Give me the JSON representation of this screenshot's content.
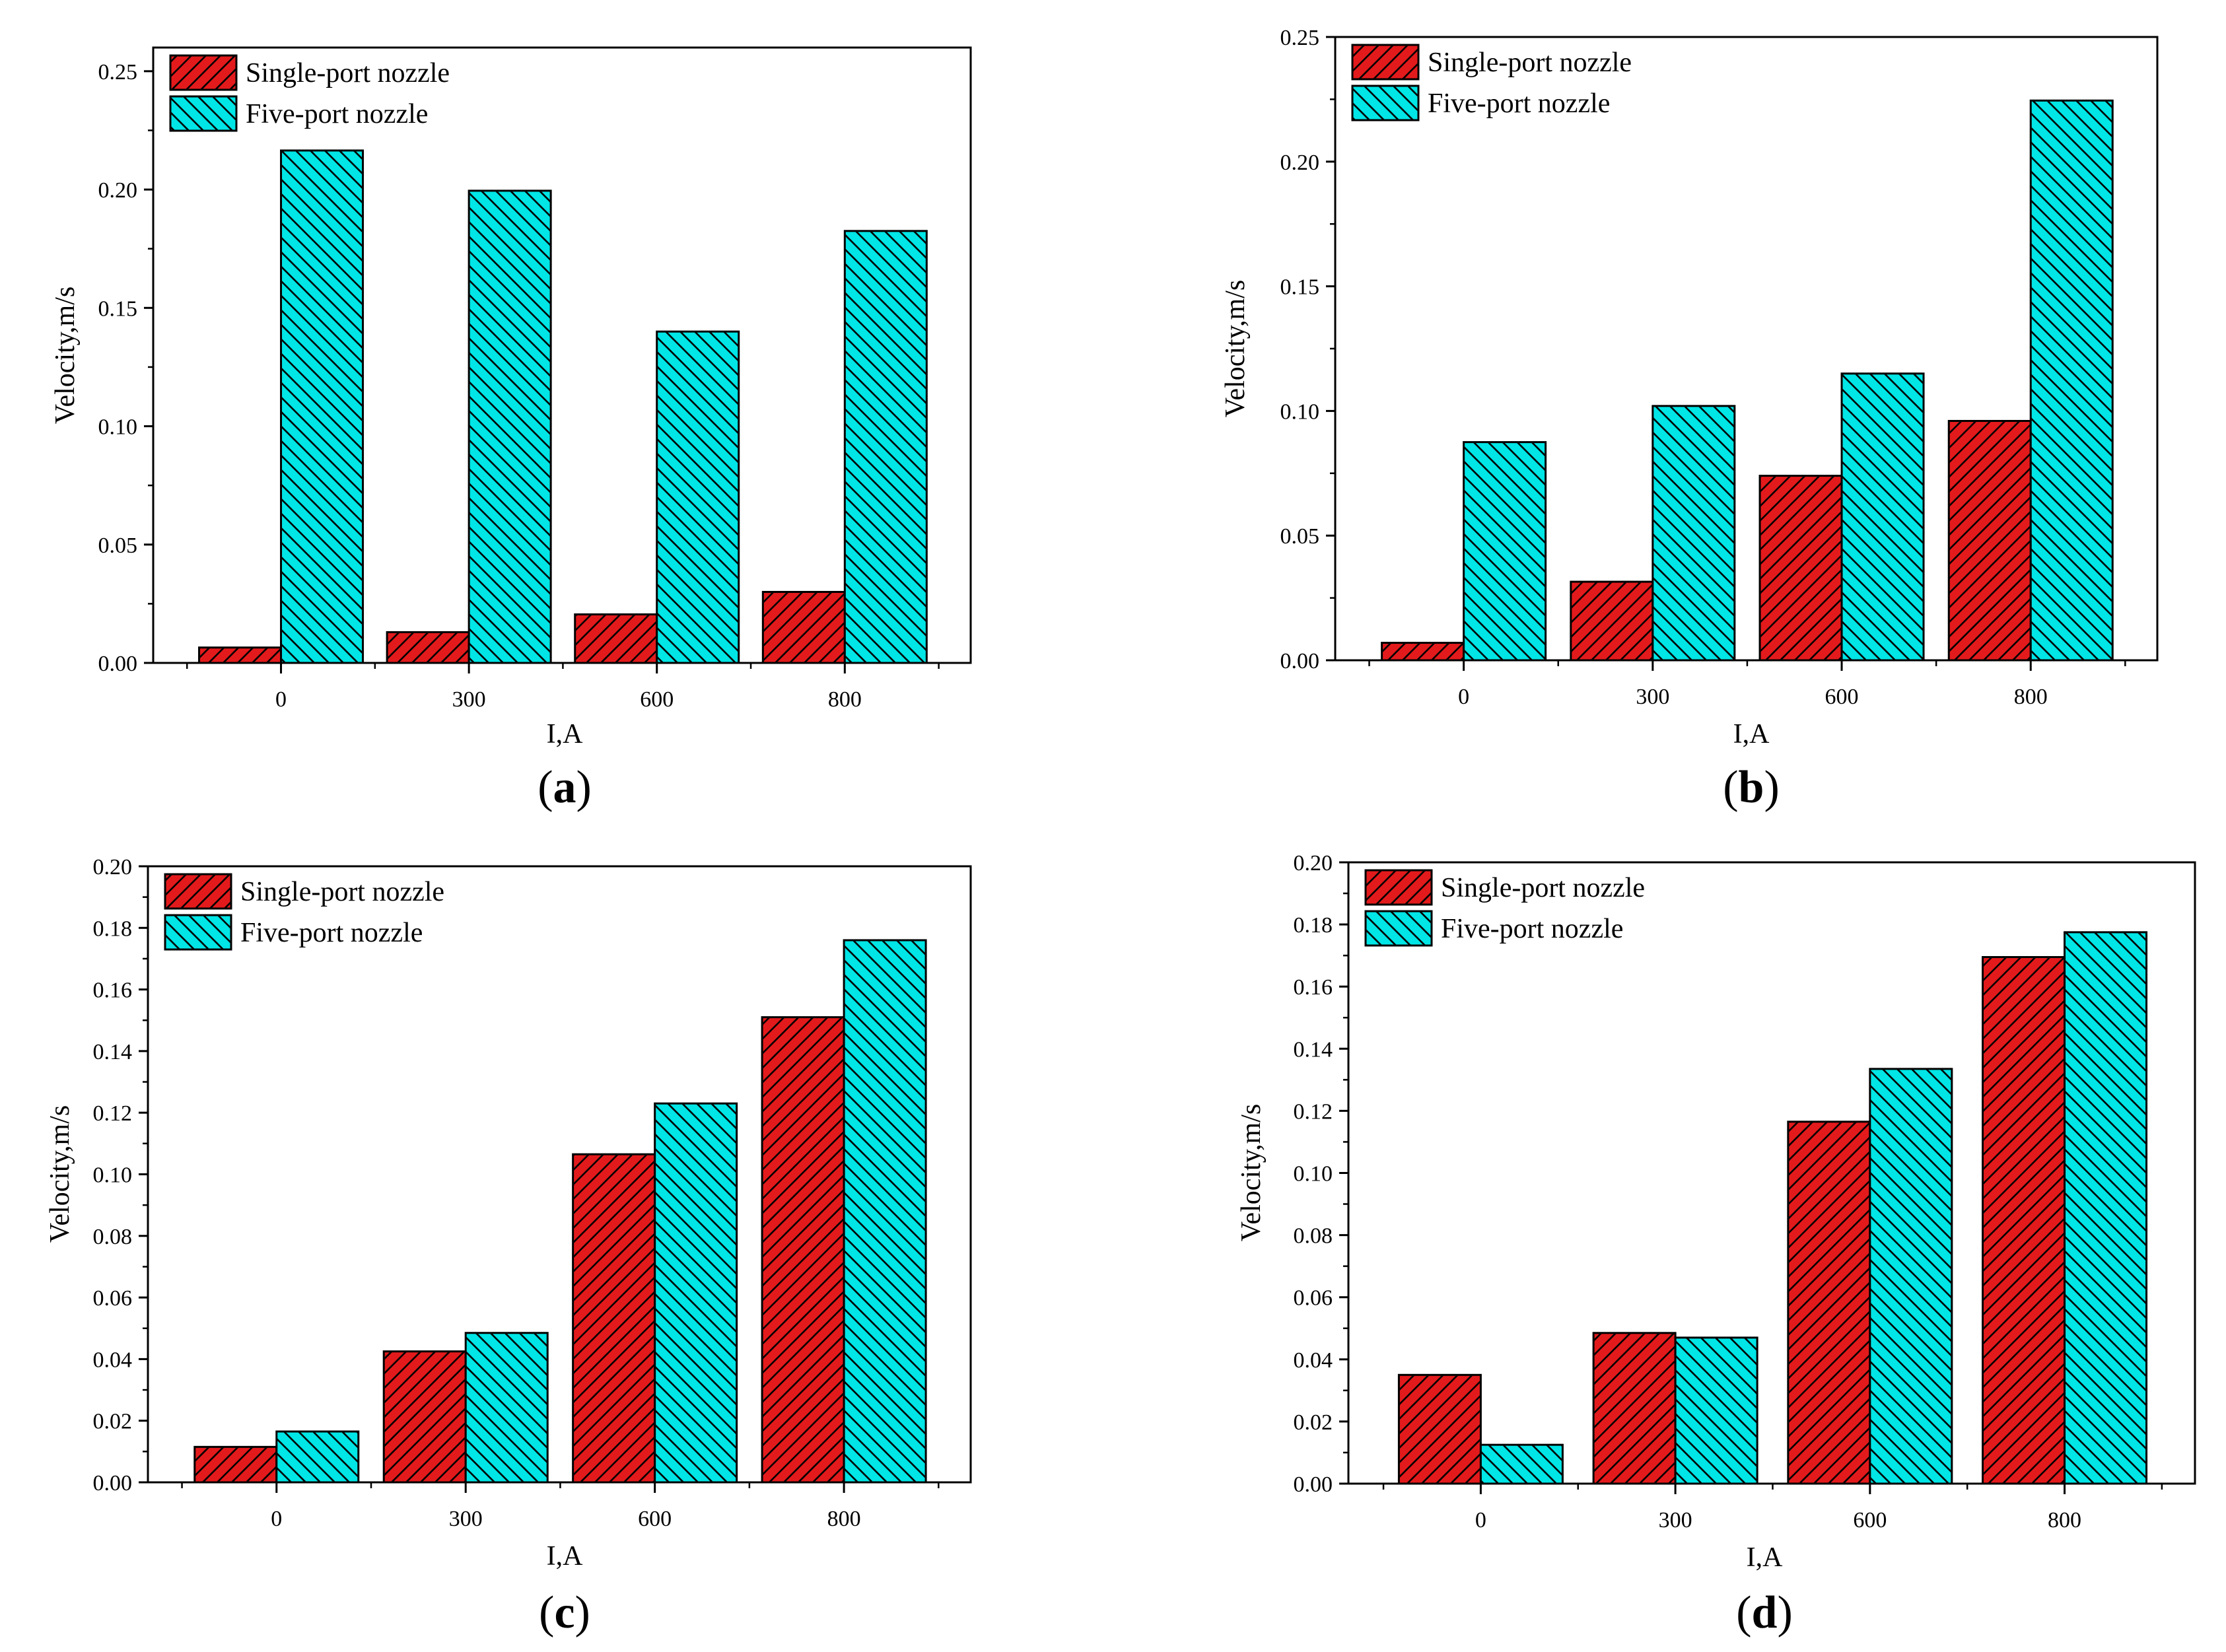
{
  "colors": {
    "single": "#e31a1c",
    "five": "#00e5e5",
    "hatch": "#000000",
    "axis": "#000000"
  },
  "chart_data": [
    {
      "type": "bar",
      "panel_label": "a",
      "title": "",
      "categories": [
        "0",
        "300",
        "600",
        "800"
      ],
      "xlabel": "I,A",
      "ylabel": "Velocity,m/s",
      "ylim": [
        0,
        0.26
      ],
      "yticks": [
        "0.00",
        "0.05",
        "0.10",
        "0.15",
        "0.20",
        "0.25"
      ],
      "legend_position": "top-left",
      "series": [
        {
          "name": "Single-port nozzle",
          "values": [
            0.0065,
            0.013,
            0.0205,
            0.03
          ]
        },
        {
          "name": "Five-port nozzle",
          "values": [
            0.2165,
            0.1995,
            0.14,
            0.1825
          ]
        }
      ]
    },
    {
      "type": "bar",
      "panel_label": "b",
      "title": "",
      "categories": [
        "0",
        "300",
        "600",
        "800"
      ],
      "xlabel": "I,A",
      "ylabel": "Velocity,m/s",
      "ylim": [
        0,
        0.25
      ],
      "yticks": [
        "0.00",
        "0.05",
        "0.10",
        "0.15",
        "0.20",
        "0.25"
      ],
      "legend_position": "top-left",
      "series": [
        {
          "name": "Single-port nozzle",
          "values": [
            0.007,
            0.0315,
            0.074,
            0.096
          ]
        },
        {
          "name": "Five-port nozzle",
          "values": [
            0.0875,
            0.102,
            0.115,
            0.2245
          ]
        }
      ]
    },
    {
      "type": "bar",
      "panel_label": "c",
      "title": "",
      "categories": [
        "0",
        "300",
        "600",
        "800"
      ],
      "xlabel": "I,A",
      "ylabel": "Velocity,m/s",
      "ylim": [
        0,
        0.2
      ],
      "yticks": [
        "0.00",
        "0.02",
        "0.04",
        "0.06",
        "0.08",
        "0.10",
        "0.12",
        "0.14",
        "0.16",
        "0.18",
        "0.20"
      ],
      "legend_position": "top-left",
      "series": [
        {
          "name": "Single-port nozzle",
          "values": [
            0.0115,
            0.0425,
            0.1065,
            0.151
          ]
        },
        {
          "name": "Five-port nozzle",
          "values": [
            0.0165,
            0.0485,
            0.123,
            0.176
          ]
        }
      ]
    },
    {
      "type": "bar",
      "panel_label": "d",
      "title": "",
      "categories": [
        "0",
        "300",
        "600",
        "800"
      ],
      "xlabel": "I,A",
      "ylabel": "Velocity,m/s",
      "ylim": [
        0,
        0.2
      ],
      "yticks": [
        "0.00",
        "0.02",
        "0.04",
        "0.06",
        "0.08",
        "0.10",
        "0.12",
        "0.14",
        "0.16",
        "0.18",
        "0.20"
      ],
      "legend_position": "top-left",
      "series": [
        {
          "name": "Single-port nozzle",
          "values": [
            0.035,
            0.0485,
            0.1165,
            0.1695
          ]
        },
        {
          "name": "Five-port nozzle",
          "values": [
            0.0125,
            0.047,
            0.1335,
            0.1775
          ]
        }
      ]
    }
  ]
}
